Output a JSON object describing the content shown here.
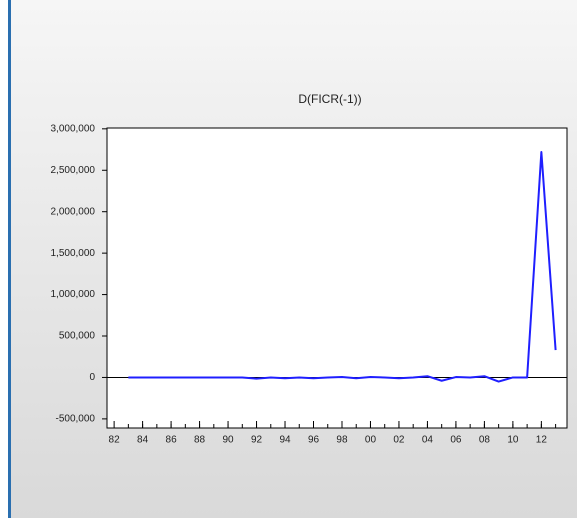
{
  "chart_data": {
    "type": "line",
    "title": "D(FICR(-1))",
    "x": [
      1983,
      1984,
      1985,
      1986,
      1987,
      1988,
      1989,
      1990,
      1991,
      1992,
      1993,
      1994,
      1995,
      1996,
      1997,
      1998,
      1999,
      2000,
      2001,
      2002,
      2003,
      2004,
      2005,
      2006,
      2007,
      2008,
      2009,
      2010,
      2011,
      2012,
      2013
    ],
    "series": [
      {
        "name": "D(FICR(-1))",
        "color": "#1f1fff",
        "values": [
          0,
          0,
          0,
          0,
          0,
          0,
          0,
          0,
          0,
          -15000,
          0,
          -10000,
          0,
          -10000,
          0,
          5000,
          -10000,
          5000,
          0,
          -10000,
          0,
          15000,
          -40000,
          5000,
          0,
          15000,
          -50000,
          0,
          0,
          2720000,
          330000
        ]
      }
    ],
    "xlim": [
      1981.5,
      2013.8
    ],
    "xticks": [
      {
        "value": 1982,
        "label": "82"
      },
      {
        "value": 1984,
        "label": "84"
      },
      {
        "value": 1986,
        "label": "86"
      },
      {
        "value": 1988,
        "label": "88"
      },
      {
        "value": 1990,
        "label": "90"
      },
      {
        "value": 1992,
        "label": "92"
      },
      {
        "value": 1994,
        "label": "94"
      },
      {
        "value": 1996,
        "label": "96"
      },
      {
        "value": 1998,
        "label": "98"
      },
      {
        "value": 2000,
        "label": "00"
      },
      {
        "value": 2002,
        "label": "02"
      },
      {
        "value": 2004,
        "label": "04"
      },
      {
        "value": 2006,
        "label": "06"
      },
      {
        "value": 2008,
        "label": "08"
      },
      {
        "value": 2010,
        "label": "10"
      },
      {
        "value": 2012,
        "label": "12"
      }
    ],
    "ylim": [
      -610000,
      3010000
    ],
    "yticks": [
      {
        "value": -500000,
        "label": "-500,000"
      },
      0,
      {
        "value": 500000,
        "label": "500,000"
      },
      {
        "value": 1000000,
        "label": "1,000,000"
      },
      {
        "value": 1500000,
        "label": "1,500,000"
      },
      {
        "value": 2000000,
        "label": "2,000,000"
      },
      {
        "value": 2500000,
        "label": "2,500,000"
      },
      {
        "value": 3000000,
        "label": "3,000,000"
      }
    ],
    "grid": false
  }
}
